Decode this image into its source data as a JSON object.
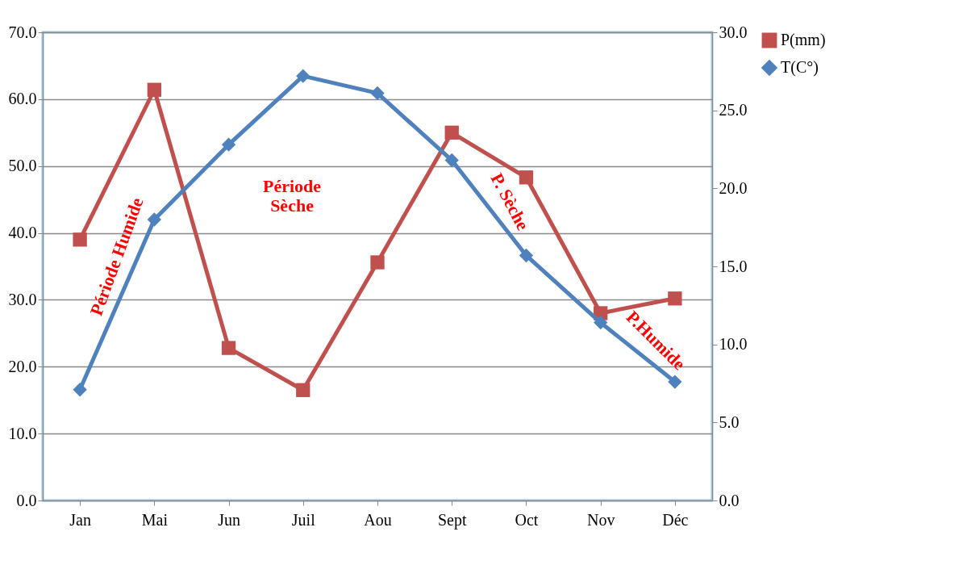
{
  "chart_data": {
    "type": "line",
    "categories": [
      "Jan",
      "Mai",
      "Jun",
      "Juil",
      "Aou",
      "Sept",
      "Oct",
      "Nov",
      "Déc"
    ],
    "series": [
      {
        "name": "P(mm)",
        "color": "#c0504d",
        "marker": "square",
        "values": [
          39.0,
          61.4,
          22.8,
          16.5,
          35.6,
          55.0,
          48.3,
          28.0,
          30.2
        ]
      },
      {
        "name": "T(C°)",
        "color": "#4f81bd",
        "marker": "diamond",
        "axis": "y2",
        "values": [
          7.1,
          18.0,
          22.8,
          27.2,
          26.1,
          21.8,
          15.7,
          11.4,
          7.6
        ]
      }
    ],
    "ylim": [
      0,
      70
    ],
    "yticks": [
      {
        "value": 0,
        "label": "0.0"
      },
      {
        "value": 10,
        "label": "10.0"
      },
      {
        "value": 20,
        "label": "20.0"
      },
      {
        "value": 30,
        "label": "30.0"
      },
      {
        "value": 40,
        "label": "40.0"
      },
      {
        "value": 50,
        "label": "50.0"
      },
      {
        "value": 60,
        "label": "60.0"
      },
      {
        "value": 70,
        "label": "70.0"
      }
    ],
    "y2lim": [
      0,
      30
    ],
    "y2ticks": [
      {
        "value": 0,
        "label": "0.0"
      },
      {
        "value": 5,
        "label": "5.0"
      },
      {
        "value": 10,
        "label": "10.0"
      },
      {
        "value": 15,
        "label": "15.0"
      },
      {
        "value": 20,
        "label": "20.0"
      },
      {
        "value": 25,
        "label": "25.0"
      },
      {
        "value": 30,
        "label": "30.0"
      }
    ],
    "grid": "y",
    "legend": "right",
    "annotations": [
      "Période Humide",
      "Période\nSèche",
      "P. Sèche",
      "P.Humide"
    ]
  }
}
